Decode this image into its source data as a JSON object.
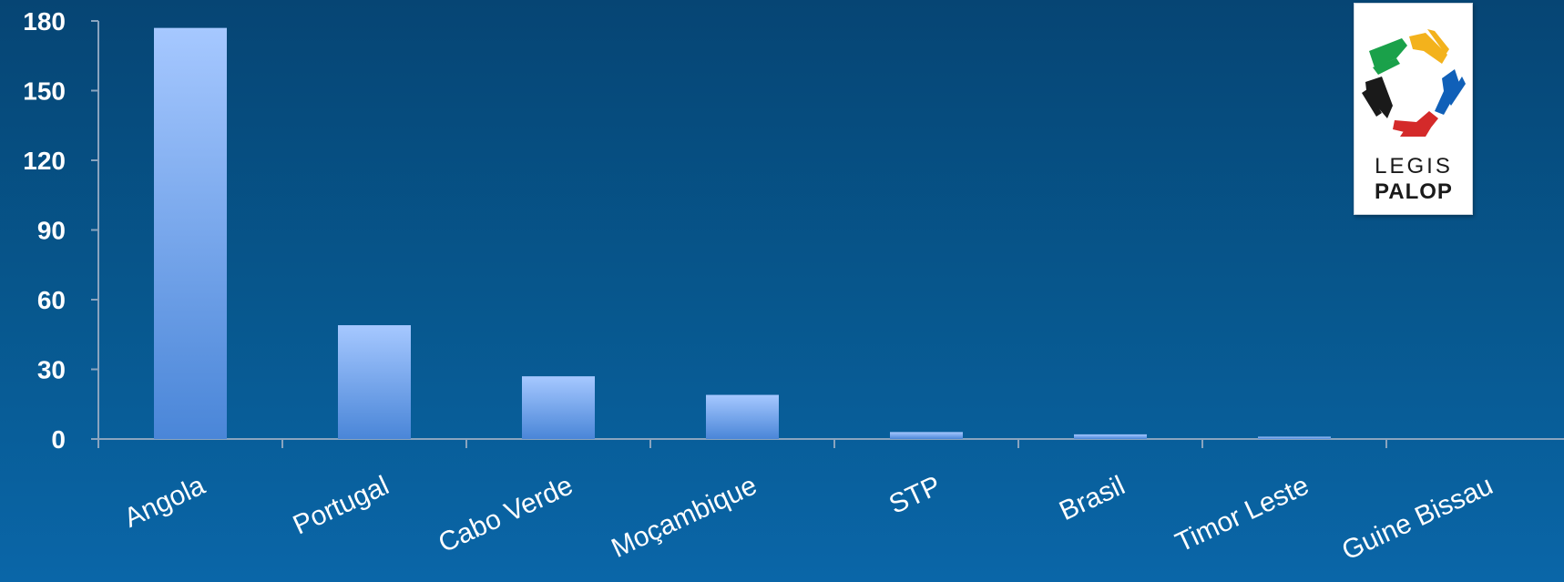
{
  "chart_data": {
    "type": "bar",
    "categories": [
      "Angola",
      "Portugal",
      "Cabo Verde",
      "Moçambique",
      "STP",
      "Brasil",
      "Timor Leste",
      "Guine Bissau"
    ],
    "values": [
      177,
      49,
      27,
      19,
      3,
      2,
      1,
      0
    ],
    "ylim": [
      0,
      180
    ],
    "yticks": [
      "0",
      "30",
      "60",
      "90",
      "120",
      "150",
      "180"
    ],
    "title": "",
    "xlabel": "",
    "ylabel": "",
    "grid": false,
    "bar_color_top": "#a6c8ff",
    "bar_color_bottom": "#4a86d8"
  },
  "logo": {
    "line1": "LEGIS",
    "line2": "PALOP"
  }
}
